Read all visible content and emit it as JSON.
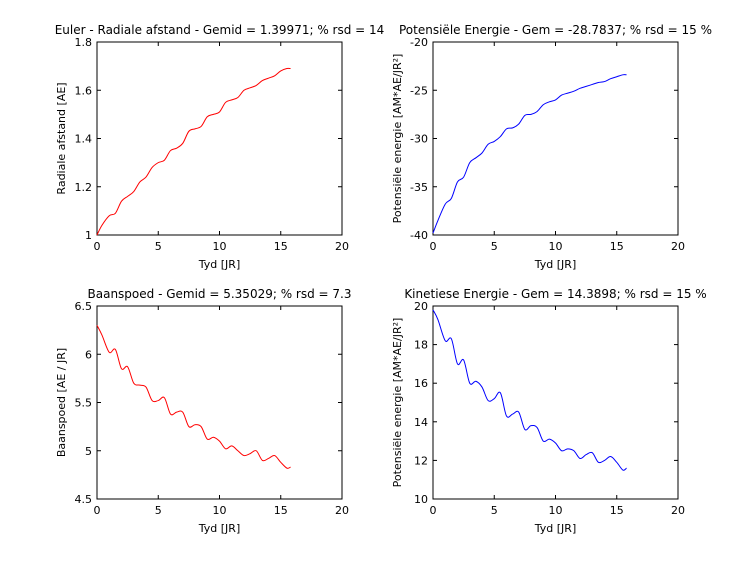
{
  "chart_data": [
    {
      "type": "line",
      "title": "Euler - Radiale afstand - Gemid = 1.39971; % rsd = 14",
      "xlabel": "Tyd [JR]",
      "ylabel": "Radiale afstand [AE]",
      "xlim": [
        0,
        20
      ],
      "ylim": [
        1,
        1.8
      ],
      "xticks": [
        "0",
        "5",
        "10",
        "15",
        "20"
      ],
      "yticks": [
        "1",
        "1.2",
        "1.4",
        "1.6",
        "1.8"
      ],
      "color": "#ff0000",
      "x": [
        0,
        0.4,
        1.0,
        1.5,
        2.0,
        2.5,
        3.0,
        3.5,
        4.0,
        4.5,
        5.0,
        5.5,
        6.0,
        6.5,
        7.0,
        7.5,
        8.0,
        8.5,
        9.0,
        9.5,
        10.0,
        10.5,
        11.0,
        11.5,
        12.0,
        12.5,
        13.0,
        13.5,
        14.0,
        14.5,
        15.0,
        15.5,
        15.8
      ],
      "y": [
        1.0,
        1.04,
        1.08,
        1.09,
        1.14,
        1.16,
        1.18,
        1.22,
        1.24,
        1.28,
        1.3,
        1.31,
        1.35,
        1.36,
        1.38,
        1.43,
        1.44,
        1.45,
        1.49,
        1.5,
        1.51,
        1.55,
        1.56,
        1.57,
        1.6,
        1.61,
        1.62,
        1.64,
        1.65,
        1.66,
        1.68,
        1.69,
        1.69
      ]
    },
    {
      "type": "line",
      "title": "Potensiële Energie - Gem = -28.7837; % rsd = 15 %",
      "xlabel": "Tyd [JR]",
      "ylabel": "Potensiële energie [AM*AE/JR²]",
      "xlim": [
        0,
        20
      ],
      "ylim": [
        -40,
        -20
      ],
      "xticks": [
        "0",
        "5",
        "10",
        "15",
        "20"
      ],
      "yticks": [
        "-40",
        "-35",
        "-30",
        "-25",
        "-20"
      ],
      "color": "#0000ff",
      "x": [
        0,
        0.4,
        1.0,
        1.5,
        2.0,
        2.5,
        3.0,
        3.5,
        4.0,
        4.5,
        5.0,
        5.5,
        6.0,
        6.5,
        7.0,
        7.5,
        8.0,
        8.5,
        9.0,
        9.5,
        10.0,
        10.5,
        11.0,
        11.5,
        12.0,
        12.5,
        13.0,
        13.5,
        14.0,
        14.5,
        15.0,
        15.5,
        15.8
      ],
      "y": [
        -39.8,
        -38.5,
        -36.8,
        -36.2,
        -34.5,
        -34.0,
        -32.5,
        -32.0,
        -31.5,
        -30.6,
        -30.3,
        -29.8,
        -29.0,
        -28.9,
        -28.5,
        -27.6,
        -27.5,
        -27.2,
        -26.5,
        -26.2,
        -26.0,
        -25.5,
        -25.3,
        -25.1,
        -24.8,
        -24.6,
        -24.4,
        -24.2,
        -24.1,
        -23.8,
        -23.6,
        -23.4,
        -23.4
      ]
    },
    {
      "type": "line",
      "title": "Baanspoed - Gemid = 5.35029; % rsd = 7.3",
      "xlabel": "Tyd [JR]",
      "ylabel": "Baanspoed [AE / JR]",
      "xlim": [
        0,
        20
      ],
      "ylim": [
        4.5,
        6.5
      ],
      "xticks": [
        "0",
        "5",
        "10",
        "15",
        "20"
      ],
      "yticks": [
        "4.5",
        "5",
        "5.5",
        "6",
        "6.5"
      ],
      "color": "#ff0000",
      "x": [
        0,
        0.4,
        1.0,
        1.5,
        2.0,
        2.5,
        3.0,
        3.5,
        4.0,
        4.5,
        5.0,
        5.5,
        6.0,
        6.5,
        7.0,
        7.5,
        8.0,
        8.5,
        9.0,
        9.5,
        10.0,
        10.5,
        11.0,
        11.5,
        12.0,
        12.5,
        13.0,
        13.5,
        14.0,
        14.5,
        15.0,
        15.5,
        15.8
      ],
      "y": [
        6.3,
        6.2,
        6.02,
        6.05,
        5.85,
        5.87,
        5.7,
        5.68,
        5.66,
        5.52,
        5.52,
        5.55,
        5.38,
        5.4,
        5.4,
        5.25,
        5.27,
        5.25,
        5.12,
        5.14,
        5.1,
        5.02,
        5.05,
        5.0,
        4.95,
        4.97,
        5.0,
        4.9,
        4.92,
        4.95,
        4.88,
        4.82,
        4.83
      ]
    },
    {
      "type": "line",
      "title": "Kinetiese Energie - Gem = 14.3898; % rsd = 15 %",
      "xlabel": "Tyd [JR]",
      "ylabel": "Potensiële energie [AM*AE/JR²]",
      "xlim": [
        0,
        20
      ],
      "ylim": [
        10,
        20
      ],
      "xticks": [
        "0",
        "5",
        "10",
        "15",
        "20"
      ],
      "yticks": [
        "10",
        "12",
        "14",
        "16",
        "18",
        "20"
      ],
      "color": "#0000ff",
      "x": [
        0,
        0.4,
        1.0,
        1.5,
        2.0,
        2.5,
        3.0,
        3.5,
        4.0,
        4.5,
        5.0,
        5.5,
        6.0,
        6.5,
        7.0,
        7.5,
        8.0,
        8.5,
        9.0,
        9.5,
        10.0,
        10.5,
        11.0,
        11.5,
        12.0,
        12.5,
        13.0,
        13.5,
        14.0,
        14.5,
        15.0,
        15.5,
        15.8
      ],
      "y": [
        19.8,
        19.3,
        18.2,
        18.3,
        17.0,
        17.2,
        16.0,
        16.1,
        15.8,
        15.1,
        15.2,
        15.5,
        14.3,
        14.4,
        14.5,
        13.6,
        13.8,
        13.7,
        13.0,
        13.1,
        12.9,
        12.5,
        12.6,
        12.5,
        12.1,
        12.3,
        12.4,
        11.9,
        12.0,
        12.2,
        11.9,
        11.5,
        11.6
      ]
    }
  ]
}
